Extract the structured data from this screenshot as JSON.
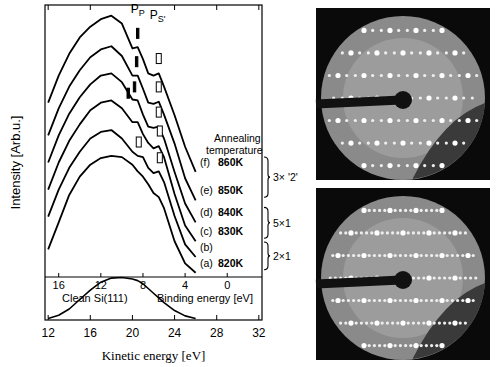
{
  "chart_data": {
    "type": "line",
    "x_label": "Kinetic energy [eV]",
    "y_label": "Intensity [Arb.u.]",
    "x2_label": "Binding energy [eV]",
    "xlim": [
      11.7,
      32.3
    ],
    "xticks": [
      12,
      16,
      20,
      24,
      28,
      32
    ],
    "x2lim": [
      17.3,
      -3.3
    ],
    "x2ticks": [
      16,
      12,
      8,
      4,
      0
    ],
    "ylim": [
      0,
      100
    ],
    "tick_labels": "x",
    "grid": false,
    "color": "#000000",
    "x": [
      12,
      13,
      14,
      15,
      16,
      17,
      18,
      19,
      20,
      20.5,
      21,
      21.5,
      22,
      22.5,
      23,
      24,
      25,
      26
    ],
    "series": [
      {
        "name": "Clean Si(111)",
        "values": [
          0.5,
          1.5,
          3.5,
          6.5,
          9.5,
          12,
          13.3,
          13.5,
          13,
          12.5,
          11.5,
          10,
          8.5,
          7,
          5.5,
          3,
          1.3,
          0.5
        ]
      },
      {
        "name": "(a)",
        "temperature": "820K",
        "values": [
          22.4,
          31.0,
          39.7,
          45.5,
          49.3,
          51.4,
          52.1,
          51.7,
          49.3,
          47.2,
          45.5,
          43.1,
          40.3,
          39.0,
          35.5,
          25,
          18,
          15
        ]
      },
      {
        "name": "(b)",
        "values": [
          32.8,
          41.4,
          48.3,
          53.4,
          57.6,
          59.7,
          60.3,
          57.6,
          53.4,
          52.1,
          51.7,
          48.3,
          46.6,
          47.2,
          43.8,
          33,
          24,
          20
        ]
      },
      {
        "name": "(c)",
        "temperature": "830K",
        "values": [
          41.4,
          50.0,
          56.9,
          62.1,
          66.6,
          69.0,
          69.7,
          67.2,
          62.8,
          62.8,
          59.0,
          56.2,
          54.5,
          55.2,
          51.7,
          40,
          30,
          25
        ]
      },
      {
        "name": "(d)",
        "temperature": "840K",
        "values": [
          50.0,
          58.6,
          65.5,
          70.7,
          74.8,
          77.6,
          78.3,
          75.5,
          70.0,
          69.7,
          65.2,
          61.4,
          61.0,
          61.4,
          57.6,
          47,
          37,
          31
        ]
      },
      {
        "name": "(e)",
        "temperature": "850K",
        "values": [
          58.6,
          67.2,
          74.1,
          79.3,
          83.4,
          85.9,
          86.9,
          83.8,
          77.6,
          77.6,
          73.4,
          69.0,
          68.6,
          69.3,
          65.2,
          56,
          45,
          38
        ]
      },
      {
        "name": "(f)",
        "temperature": "860K",
        "values": [
          69.0,
          77.6,
          84.5,
          89.7,
          93.1,
          95.5,
          96.6,
          94.1,
          86.2,
          86.6,
          82.8,
          78.3,
          77.6,
          78.3,
          74.1,
          65,
          55,
          47
        ]
      }
    ],
    "legend_title": "Annealing temperature",
    "groups": [
      {
        "label": "2×1",
        "series": [
          1,
          2
        ]
      },
      {
        "label": "5×1",
        "series": [
          3,
          4
        ]
      },
      {
        "label": "3× '2'",
        "series": [
          5,
          6
        ]
      }
    ],
    "annotations": [
      {
        "text": "P",
        "sub": "P",
        "x": 20.5,
        "y": 97.5
      },
      {
        "text": "P",
        "sub": "S'",
        "x": 22.4,
        "y": 95.5
      }
    ],
    "peak_marks": [
      {
        "x": 20.5,
        "y": 91,
        "style": "filled"
      },
      {
        "x": 22.5,
        "y": 83,
        "style": "open"
      },
      {
        "x": 20.4,
        "y": 82,
        "style": "filled"
      },
      {
        "x": 22.5,
        "y": 74,
        "style": "open"
      },
      {
        "x": 20.2,
        "y": 74,
        "style": "filled"
      },
      {
        "x": 22.5,
        "y": 66,
        "style": "open"
      },
      {
        "x": 19.6,
        "y": 72,
        "style": "filled"
      },
      {
        "x": 22.6,
        "y": 60,
        "style": "open"
      },
      {
        "x": 20.6,
        "y": 56.5,
        "style": "open"
      },
      {
        "x": 22.6,
        "y": 51.5,
        "style": "open"
      }
    ]
  }
}
